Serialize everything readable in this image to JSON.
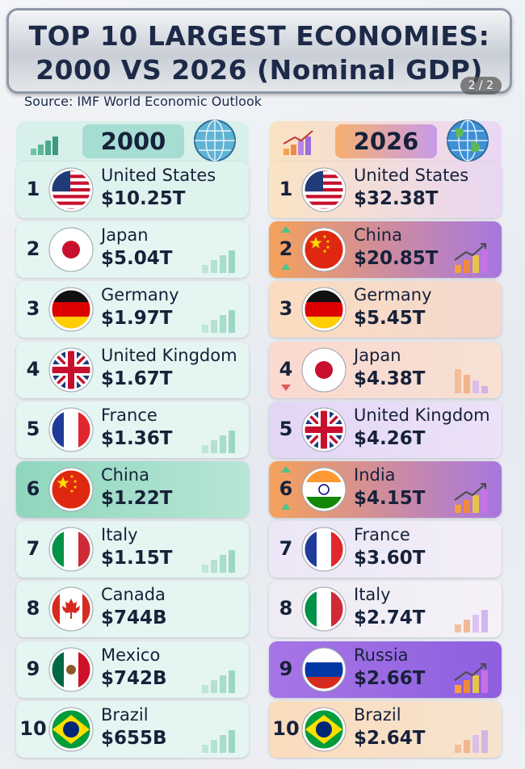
{
  "header": {
    "title_line1": "TOP 10 LARGEST ECONOMIES:",
    "title_line2": "2000 VS 2026 (Nominal GDP)",
    "source": "Source: IMF World Economic Outlook",
    "page_indicator": "2 / 2"
  },
  "columns": [
    {
      "year": "2000",
      "rows": [
        {
          "rank": 1,
          "country": "United States",
          "gdp": "$10.25T"
        },
        {
          "rank": 2,
          "country": "Japan",
          "gdp": "$5.04T"
        },
        {
          "rank": 3,
          "country": "Germany",
          "gdp": "$1.97T"
        },
        {
          "rank": 4,
          "country": "United Kingdom",
          "gdp": "$1.67T"
        },
        {
          "rank": 5,
          "country": "France",
          "gdp": "$1.36T"
        },
        {
          "rank": 6,
          "country": "China",
          "gdp": "$1.22T"
        },
        {
          "rank": 7,
          "country": "Italy",
          "gdp": "$1.15T"
        },
        {
          "rank": 8,
          "country": "Canada",
          "gdp": "$744B"
        },
        {
          "rank": 9,
          "country": "Mexico",
          "gdp": "$742B"
        },
        {
          "rank": 10,
          "country": "Brazil",
          "gdp": "$655B"
        }
      ]
    },
    {
      "year": "2026",
      "rows": [
        {
          "rank": 1,
          "country": "United States",
          "gdp": "$32.38T"
        },
        {
          "rank": 2,
          "country": "China",
          "gdp": "$20.85T"
        },
        {
          "rank": 3,
          "country": "Germany",
          "gdp": "$5.45T"
        },
        {
          "rank": 4,
          "country": "Japan",
          "gdp": "$4.38T"
        },
        {
          "rank": 5,
          "country": "United Kingdom",
          "gdp": "$4.26T"
        },
        {
          "rank": 6,
          "country": "India",
          "gdp": "$4.15T"
        },
        {
          "rank": 7,
          "country": "France",
          "gdp": "$3.60T"
        },
        {
          "rank": 8,
          "country": "Italy",
          "gdp": "$2.74T"
        },
        {
          "rank": 9,
          "country": "Russia",
          "gdp": "$2.66T"
        },
        {
          "rank": 10,
          "country": "Brazil",
          "gdp": "$2.64T"
        }
      ]
    }
  ]
}
